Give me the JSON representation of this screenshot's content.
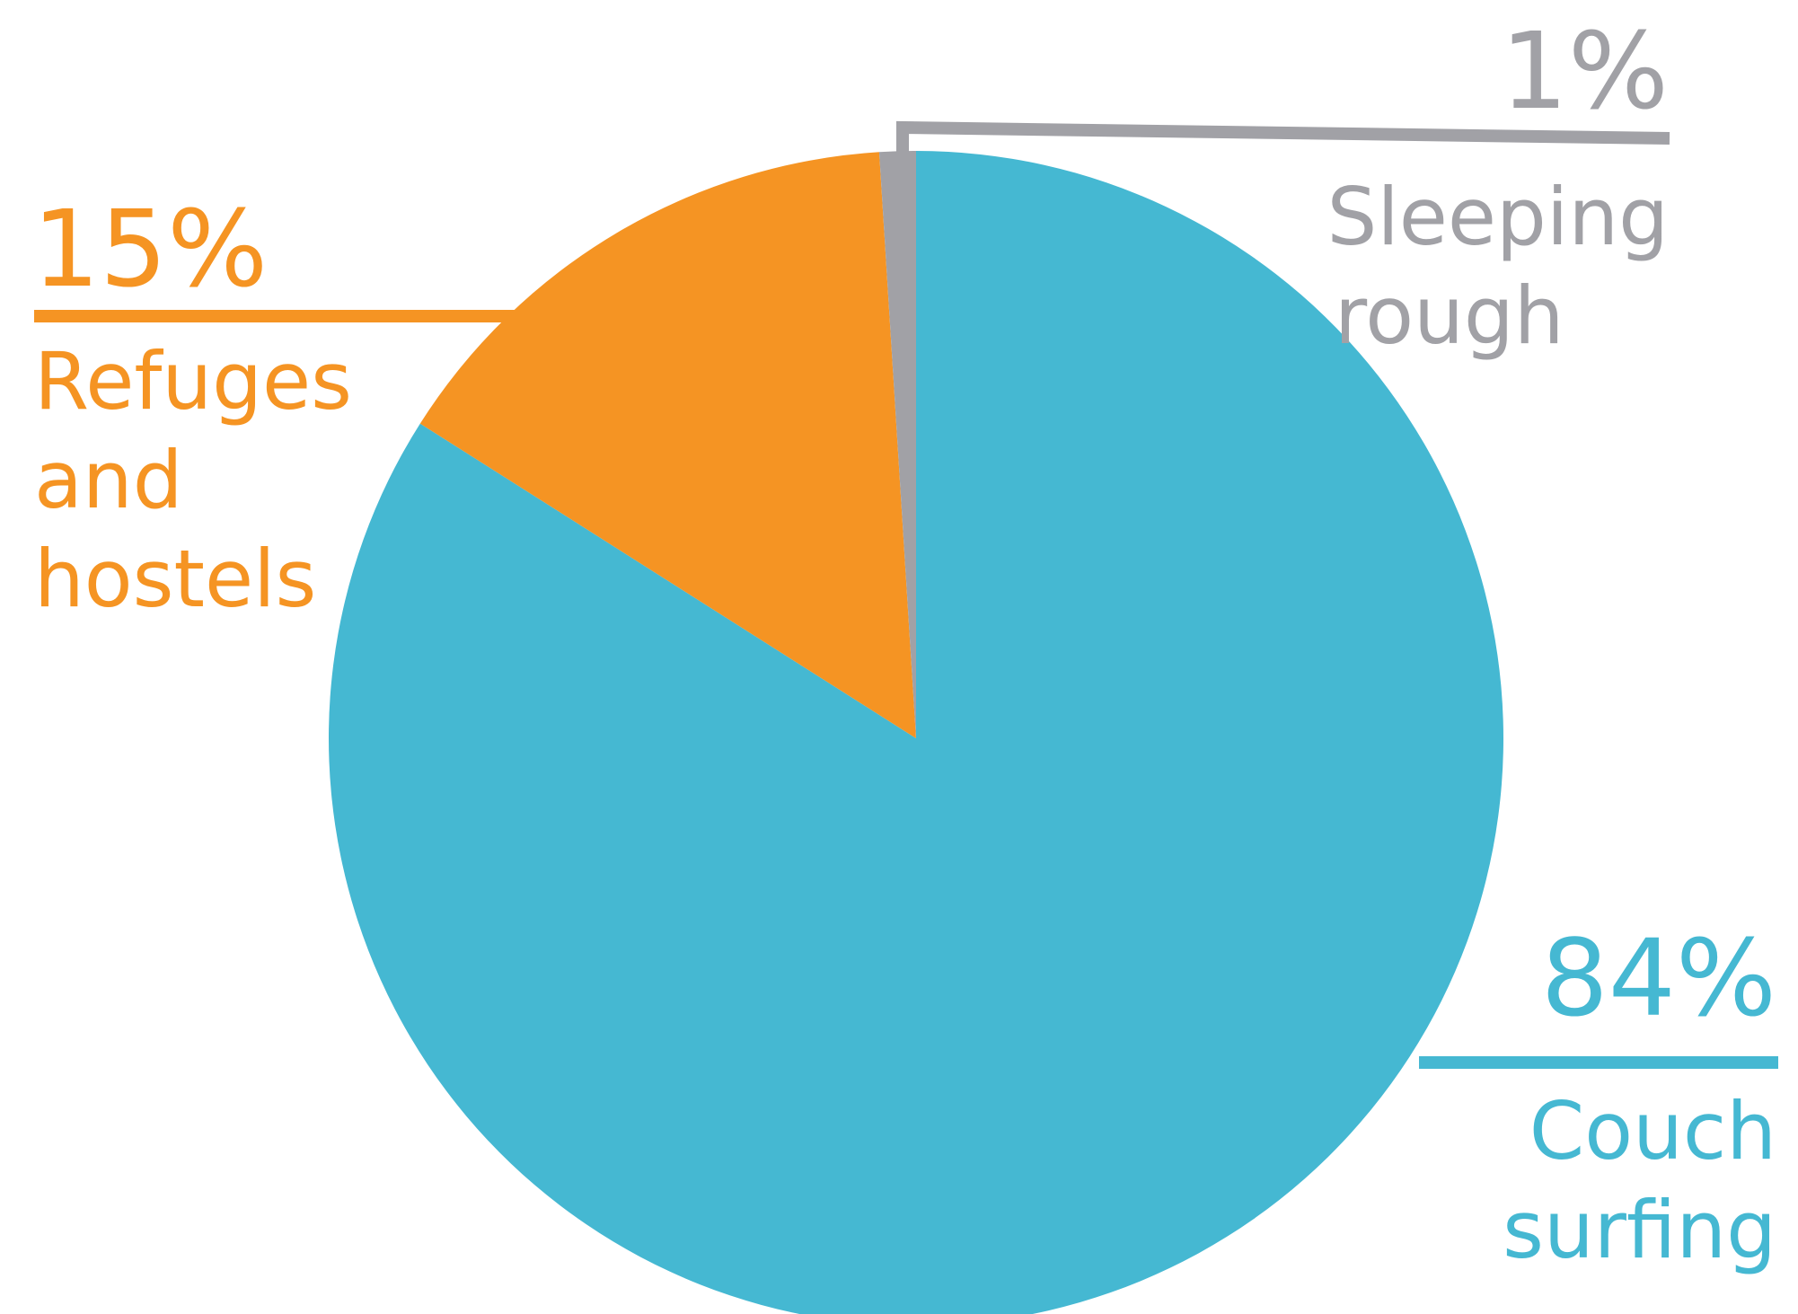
{
  "chart_data": {
    "type": "pie",
    "start_angle_deg": 0,
    "direction": "clockwise",
    "slices": [
      {
        "name": "Couch surfing",
        "value": 84,
        "percent_label": "84%",
        "label_lines": [
          "Couch",
          "surfing"
        ],
        "color": "#45b8d2"
      },
      {
        "name": "Refuges and hostels",
        "value": 15,
        "percent_label": "15%",
        "label_lines": [
          "Refuges",
          "and",
          "hostels"
        ],
        "color": "#f59423"
      },
      {
        "name": "Sleeping rough",
        "value": 1,
        "percent_label": "1%",
        "label_lines": [
          "Sleeping",
          "rough"
        ],
        "color": "#a1a1a6"
      }
    ],
    "legend": "none",
    "grid": false
  }
}
